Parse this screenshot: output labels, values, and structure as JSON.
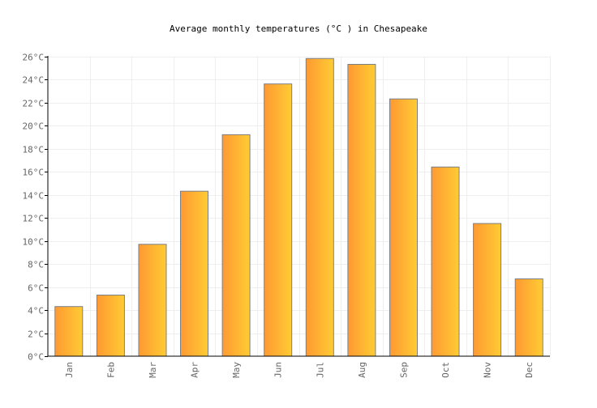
{
  "chart_data": {
    "type": "bar",
    "title": "Average monthly temperatures (°C ) in Chesapeake",
    "xlabel": "",
    "ylabel": "",
    "categories": [
      "Jan",
      "Feb",
      "Mar",
      "Apr",
      "May",
      "Jun",
      "Jul",
      "Aug",
      "Sep",
      "Oct",
      "Nov",
      "Dec"
    ],
    "values": [
      4.3,
      5.3,
      9.7,
      14.3,
      19.2,
      23.6,
      25.8,
      25.3,
      22.3,
      16.4,
      11.5,
      6.7
    ],
    "ylim": [
      0,
      26
    ],
    "yticks": [
      "0°C",
      "2°C",
      "4°C",
      "6°C",
      "8°C",
      "10°C",
      "12°C",
      "14°C",
      "16°C",
      "18°C",
      "20°C",
      "22°C",
      "24°C",
      "26°C"
    ],
    "grid": true,
    "legend": "none",
    "colors": {
      "bar_start": "#ff9933",
      "bar_end": "#ffcc33",
      "bar_stroke": "#7a7f87",
      "grid": "#eeeeee",
      "axis": "#000000",
      "tick_text": "#666666"
    }
  }
}
